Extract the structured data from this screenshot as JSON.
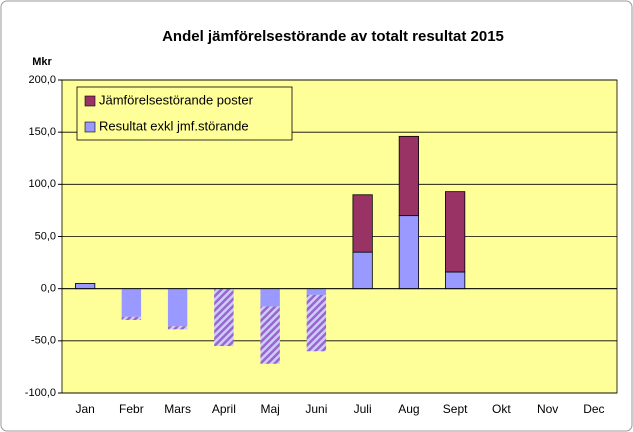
{
  "chart_data": {
    "type": "stacked_bar",
    "title": "Andel jämförelsestörande av totalt resultat 2015",
    "y_label": "Mkr",
    "categories": [
      "Jan",
      "Febr",
      "Mars",
      "April",
      "Maj",
      "Juni",
      "Juli",
      "Aug",
      "Sept",
      "Okt",
      "Nov",
      "Dec"
    ],
    "series": [
      {
        "name": "Resultat exkl jmf.störande",
        "color": "#9999ff",
        "values": [
          5,
          -27,
          -36,
          0,
          -17,
          -6,
          35,
          70,
          16,
          null,
          null,
          null
        ]
      },
      {
        "name": "Jämförelsestörande poster",
        "color": "#993366",
        "values": [
          0,
          -3,
          -3,
          -55,
          -55,
          -54,
          55,
          76,
          77,
          null,
          null,
          null
        ]
      }
    ],
    "ylim": [
      -100,
      200
    ],
    "yticks": [
      {
        "value": -100,
        "label": "-100,0"
      },
      {
        "value": -50,
        "label": "-50,0"
      },
      {
        "value": 0,
        "label": "0,0"
      },
      {
        "value": 50,
        "label": "50,0"
      },
      {
        "value": 100,
        "label": "100,0"
      },
      {
        "value": 150,
        "label": "150,0"
      },
      {
        "value": 200,
        "label": "200,0"
      }
    ],
    "grid": true,
    "legend": "upper left",
    "plot_background": "#ffff99"
  }
}
